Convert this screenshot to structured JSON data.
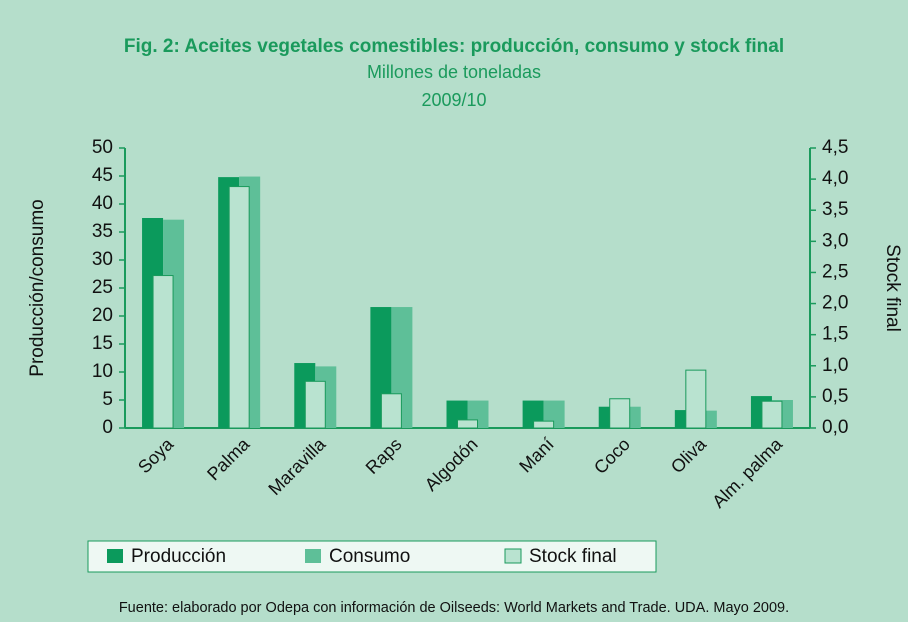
{
  "chart_data": {
    "type": "bar",
    "title": "Fig. 2: Aceites vegetales comestibles: producción, consumo y stock final",
    "subtitle": "Millones de toneladas",
    "period": "2009/10",
    "ylabel": "Producción/consumo",
    "y2label": "Stock final",
    "categories": [
      "Soya",
      "Palma",
      "Maravilla",
      "Raps",
      "Algodón",
      "Maní",
      "Coco",
      "Oliva",
      "Alm. palma"
    ],
    "series": [
      {
        "name": "Producción",
        "color": "#0b9a5c",
        "values": [
          37.5,
          44.8,
          11.6,
          21.6,
          4.9,
          4.9,
          3.8,
          3.2,
          5.7
        ]
      },
      {
        "name": "Consumo",
        "color": "#5ebf98",
        "values": [
          37.2,
          44.9,
          11.0,
          21.6,
          4.9,
          4.9,
          3.8,
          3.1,
          5.0
        ]
      },
      {
        "name": "Stock final",
        "color": "#b9e3d0",
        "axis": "y2",
        "values": [
          2.45,
          3.88,
          0.75,
          0.55,
          0.13,
          0.11,
          0.47,
          0.93,
          0.43
        ]
      }
    ],
    "ylim": [
      0,
      50
    ],
    "yticks": [
      0,
      5,
      10,
      15,
      20,
      25,
      30,
      35,
      40,
      45,
      50
    ],
    "y2lim": [
      0,
      4.5
    ],
    "y2ticks": [
      {
        "value": 0,
        "label": "0,0"
      },
      {
        "value": 0.5,
        "label": "0,5"
      },
      {
        "value": 1,
        "label": "1,0"
      },
      {
        "value": 1.5,
        "label": "1,5"
      },
      {
        "value": 2,
        "label": "2,0"
      },
      {
        "value": 2.5,
        "label": "2,5"
      },
      {
        "value": 3,
        "label": "3,0"
      },
      {
        "value": 3.5,
        "label": "3,5"
      },
      {
        "value": 4,
        "label": "4,0"
      },
      {
        "value": 4.5,
        "label": "4,5"
      }
    ],
    "legend": "bottom",
    "source": "Fuente: elaborado por Odepa con información de Oilseeds: World Markets and Trade. UDA. Mayo 2009."
  }
}
